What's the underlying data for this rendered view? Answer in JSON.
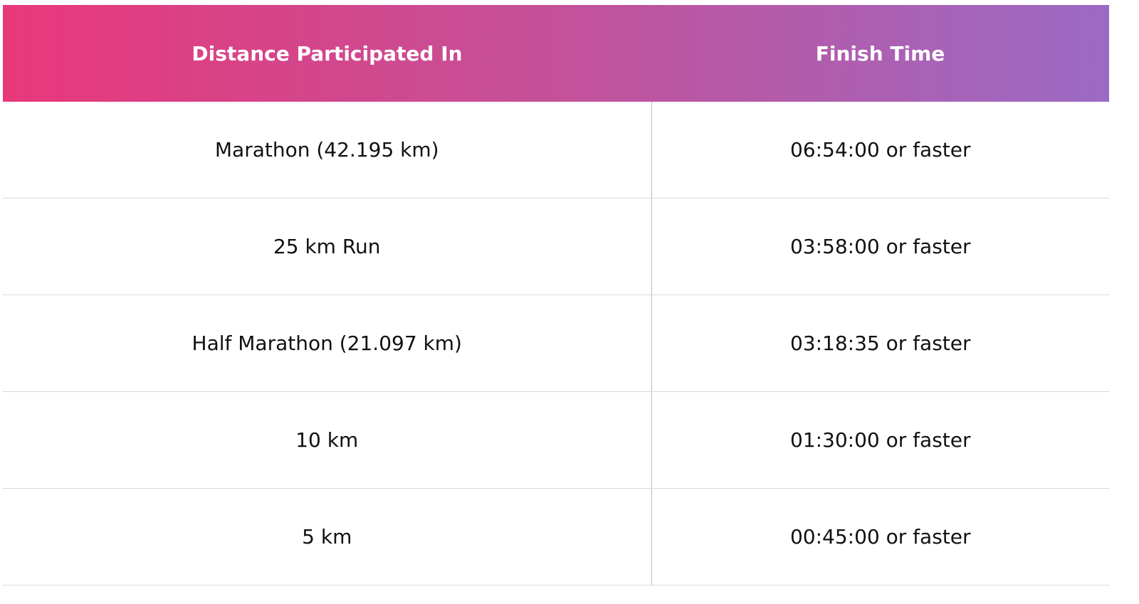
{
  "table": {
    "headers": [
      "Distance Participated In",
      "Finish Time"
    ],
    "rows": [
      [
        "Marathon (42.195 km)",
        "06:54:00 or faster"
      ],
      [
        "25 km Run",
        "03:58:00 or faster"
      ],
      [
        "Half Marathon (21.097 km)",
        "03:18:35 or faster"
      ],
      [
        "10 km",
        "01:30:00 or faster"
      ],
      [
        "5 km",
        "00:45:00 or faster"
      ]
    ]
  }
}
